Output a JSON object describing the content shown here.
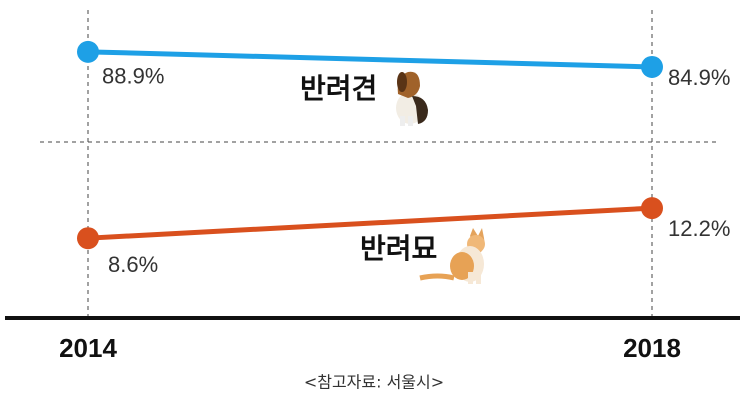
{
  "chart_data": {
    "type": "line",
    "categories": [
      "2014",
      "2018"
    ],
    "series": [
      {
        "name": "반려견",
        "color": "#1ea0e6",
        "values": [
          88.9,
          84.9
        ],
        "value_labels": [
          "88.9%",
          "84.9%"
        ]
      },
      {
        "name": "반려묘",
        "color": "#d9501e",
        "values": [
          8.6,
          12.2
        ],
        "value_labels": [
          "8.6%",
          "12.2%"
        ],
        "axis": "y2"
      }
    ],
    "ylim": [
      65,
      100
    ],
    "y2lim": [
      0,
      20
    ],
    "broken_axis": true,
    "source": "<참고자료: 서울시>"
  }
}
